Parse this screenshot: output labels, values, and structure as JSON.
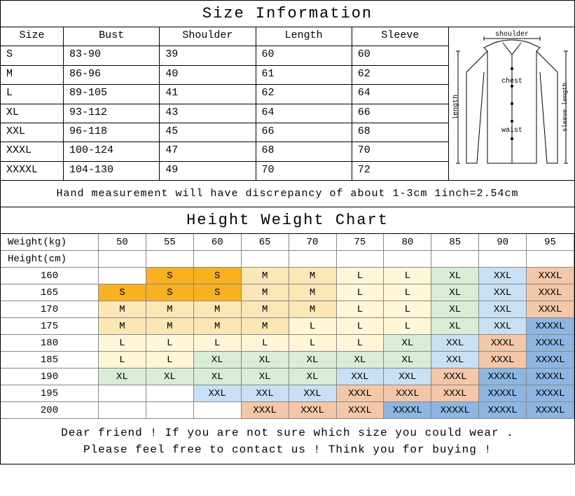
{
  "size_info": {
    "title": "Size Information",
    "columns": [
      "Size",
      "Bust",
      "Shoulder",
      "Length",
      "Sleeve"
    ],
    "rows": [
      [
        "S",
        "83-90",
        "39",
        "60",
        "60"
      ],
      [
        "M",
        "86-96",
        "40",
        "61",
        "62"
      ],
      [
        "L",
        "89-105",
        "41",
        "62",
        "64"
      ],
      [
        "XL",
        "93-112",
        "43",
        "64",
        "66"
      ],
      [
        "XXL",
        "96-118",
        "45",
        "66",
        "68"
      ],
      [
        "XXXL",
        "100-124",
        "47",
        "68",
        "70"
      ],
      [
        "XXXXL",
        "104-130",
        "49",
        "70",
        "72"
      ]
    ],
    "diagram_labels": {
      "shoulder": "shoulder",
      "chest": "chest",
      "length": "length",
      "waist": "waist",
      "sleeve_length": "sleeve length"
    },
    "note": "Hand measurement will have discrepancy of about 1-3cm  1inch=2.54cm"
  },
  "hw_chart": {
    "title": "Height Weight Chart",
    "weight_label": "Weight(kg)",
    "height_label": "Height(cm)",
    "weights": [
      "50",
      "55",
      "60",
      "65",
      "70",
      "75",
      "80",
      "85",
      "90",
      "95"
    ],
    "heights": [
      "160",
      "165",
      "170",
      "175",
      "180",
      "185",
      "190",
      "195",
      "200"
    ],
    "colors": {
      "S": "#f9b122",
      "M": "#fde6b6",
      "L": "#fff6d8",
      "XL": "#d8ecd6",
      "XXL": "#c7e0f4",
      "XXXL": "#f3c7a8",
      "XXXXL": "#8db6e2",
      "": "#ffffff"
    },
    "grid": [
      [
        "",
        "S",
        "S",
        "M",
        "M",
        "L",
        "L",
        "XL",
        "XXL",
        "XXXL"
      ],
      [
        "S",
        "S",
        "S",
        "M",
        "M",
        "L",
        "L",
        "XL",
        "XXL",
        "XXXL"
      ],
      [
        "M",
        "M",
        "M",
        "M",
        "M",
        "L",
        "L",
        "XL",
        "XXL",
        "XXXL"
      ],
      [
        "M",
        "M",
        "M",
        "M",
        "L",
        "L",
        "L",
        "XL",
        "XXL",
        "XXXXL"
      ],
      [
        "L",
        "L",
        "L",
        "L",
        "L",
        "L",
        "XL",
        "XXL",
        "XXXL",
        "XXXXL"
      ],
      [
        "L",
        "L",
        "XL",
        "XL",
        "XL",
        "XL",
        "XL",
        "XXL",
        "XXXL",
        "XXXXL"
      ],
      [
        "XL",
        "XL",
        "XL",
        "XL",
        "XL",
        "XXL",
        "XXL",
        "XXXL",
        "XXXXL",
        "XXXXL"
      ],
      [
        "",
        "",
        "XXL",
        "XXL",
        "XXL",
        "XXXL",
        "XXXL",
        "XXXL",
        "XXXXL",
        "XXXXL"
      ],
      [
        "",
        "",
        "",
        "XXXL",
        "XXXL",
        "XXXL",
        "XXXXL",
        "XXXXL",
        "XXXXL",
        "XXXXL"
      ]
    ]
  },
  "footer": {
    "line1": "Dear friend ! If you are not sure which size you could wear .",
    "line2": "Please feel free to contact us ! Think you for buying !"
  }
}
